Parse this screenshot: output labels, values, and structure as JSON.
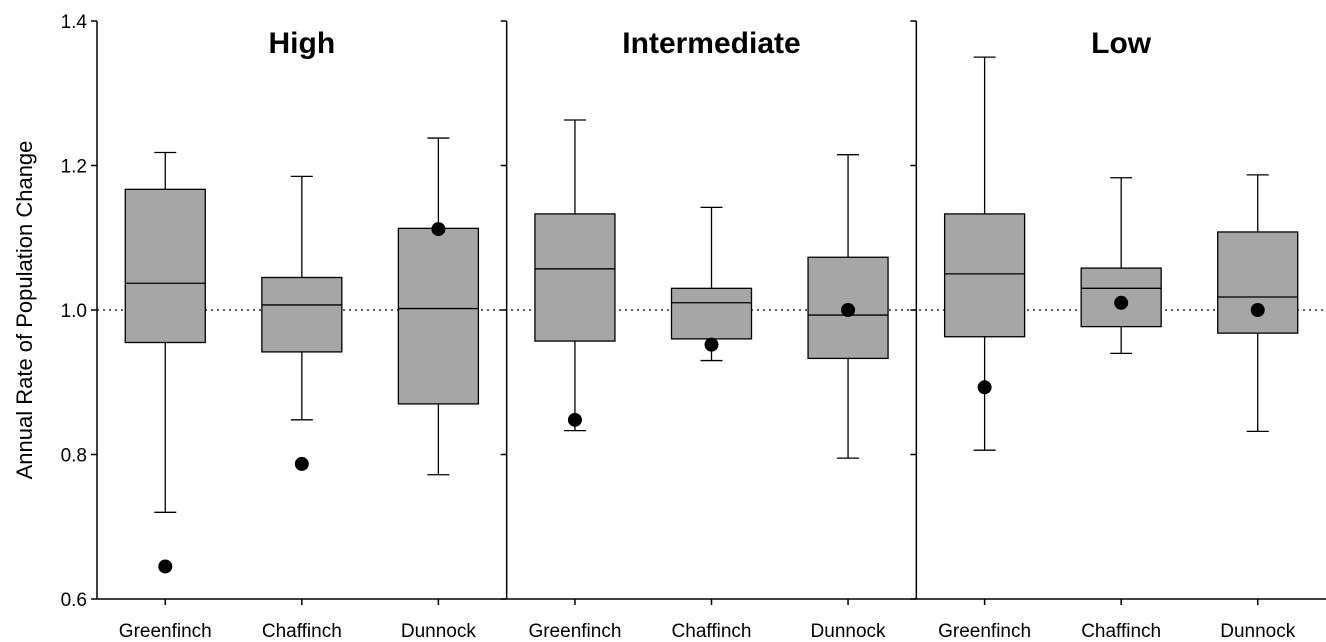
{
  "chart_data": {
    "type": "box",
    "ylabel": "Annual Rate of Population Change",
    "ylim": [
      0.6,
      1.4
    ],
    "yticks": [
      0.6,
      0.8,
      1.0,
      1.2,
      1.4
    ],
    "yticks_labels": [
      "0.6",
      "0.8",
      "1.0",
      "1.2",
      "1.4"
    ],
    "reference_line": 1.0,
    "grid": false,
    "box_color": "#a6a6a6",
    "point_color": "#000000",
    "panels": [
      {
        "title": "High",
        "categories": [
          "Greenfinch",
          "Chaffinch",
          "Dunnock"
        ],
        "boxes": [
          {
            "whisker_low": 0.72,
            "q1": 0.955,
            "median": 1.037,
            "q3": 1.167,
            "whisker_high": 1.218,
            "point": 0.645
          },
          {
            "whisker_low": 0.848,
            "q1": 0.942,
            "median": 1.007,
            "q3": 1.045,
            "whisker_high": 1.185,
            "point": 0.787
          },
          {
            "whisker_low": 0.772,
            "q1": 0.87,
            "median": 1.002,
            "q3": 1.113,
            "whisker_high": 1.238,
            "point": 1.112
          }
        ]
      },
      {
        "title": "Intermediate",
        "categories": [
          "Greenfinch",
          "Chaffinch",
          "Dunnock"
        ],
        "boxes": [
          {
            "whisker_low": 0.833,
            "q1": 0.957,
            "median": 1.057,
            "q3": 1.133,
            "whisker_high": 1.263,
            "point": 0.848
          },
          {
            "whisker_low": 0.93,
            "q1": 0.96,
            "median": 1.01,
            "q3": 1.03,
            "whisker_high": 1.142,
            "point": 0.952
          },
          {
            "whisker_low": 0.795,
            "q1": 0.933,
            "median": 0.993,
            "q3": 1.073,
            "whisker_high": 1.215,
            "point": 1.0
          }
        ]
      },
      {
        "title": "Low",
        "categories": [
          "Greenfinch",
          "Chaffinch",
          "Dunnock"
        ],
        "boxes": [
          {
            "whisker_low": 0.806,
            "q1": 0.963,
            "median": 1.05,
            "q3": 1.133,
            "whisker_high": 1.35,
            "point": 0.893
          },
          {
            "whisker_low": 0.94,
            "q1": 0.977,
            "median": 1.03,
            "q3": 1.058,
            "whisker_high": 1.183,
            "point": 1.01
          },
          {
            "whisker_low": 0.832,
            "q1": 0.968,
            "median": 1.018,
            "q3": 1.108,
            "whisker_high": 1.187,
            "point": 1.0
          }
        ]
      }
    ]
  }
}
